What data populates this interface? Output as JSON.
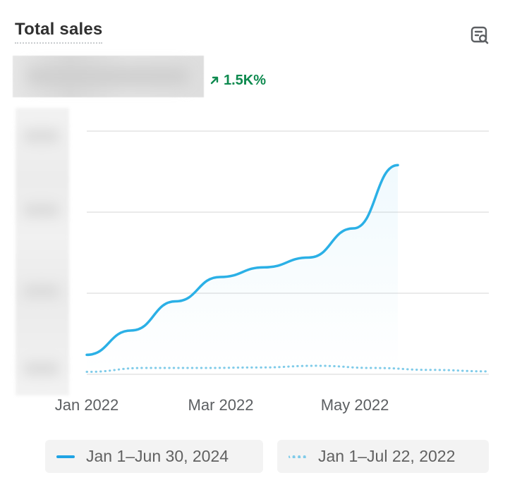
{
  "card": {
    "title": "Total sales",
    "change": "1.5K%",
    "icons": {
      "insight": "report-search-icon",
      "change": "arrow-up-right-icon"
    }
  },
  "colors": {
    "primary_line": "#2bb0e6",
    "comparison_line": "#7fcbe9",
    "positive": "#0e8a4f",
    "grid": "#e3e3e3"
  },
  "chart_data": {
    "type": "line",
    "x_tick_labels": [
      "Jan 2022",
      "Mar 2022",
      "May 2022"
    ],
    "y_gridlines": 4,
    "y_axis_labels_hidden": true,
    "total_value_hidden": true,
    "series": [
      {
        "name": "Jan 1–Jun 30, 2024",
        "style": "solid",
        "values": [
          0.08,
          0.18,
          0.3,
          0.4,
          0.44,
          0.48,
          0.6,
          0.86
        ]
      },
      {
        "name": "Jan 1–Jul 22, 2022",
        "style": "dotted",
        "values": [
          0.01,
          0.026,
          0.026,
          0.028,
          0.035,
          0.026,
          0.018,
          0.012
        ]
      }
    ]
  },
  "legend": [
    {
      "label": "Jan 1–Jun 30, 2024",
      "style": "solid"
    },
    {
      "label": "Jan 1–Jul 22, 2022",
      "style": "dotted"
    }
  ]
}
